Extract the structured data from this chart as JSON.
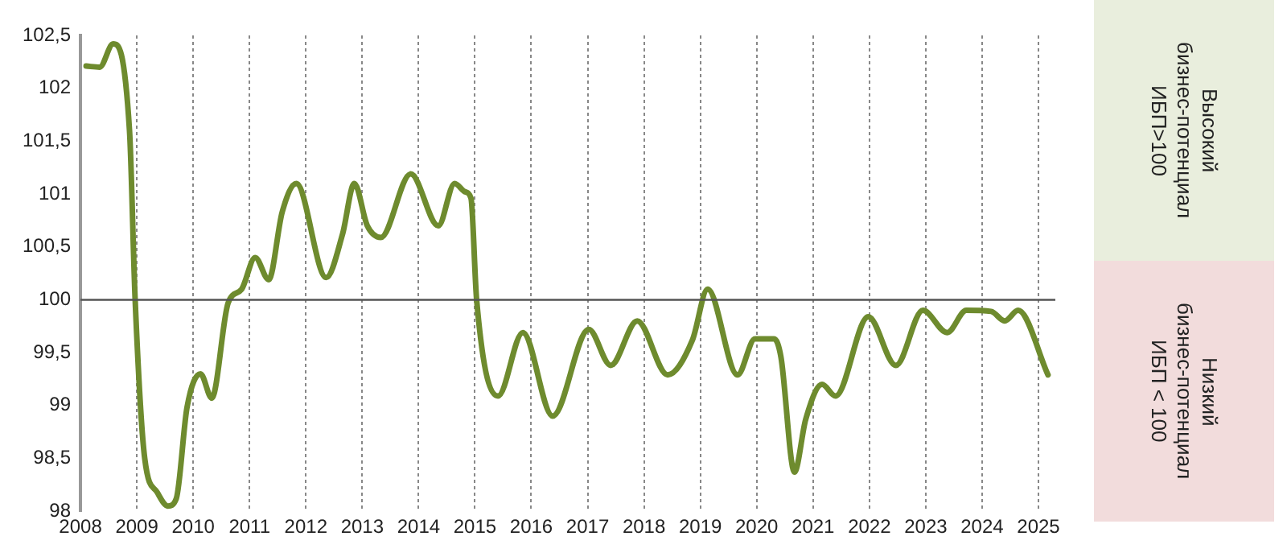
{
  "chart_data": {
    "type": "line",
    "x": [
      2008.1,
      2008.34,
      2008.58,
      2008.87,
      2008.97,
      2009.14,
      2009.36,
      2009.55,
      2009.7,
      2009.89,
      2010.13,
      2010.33,
      2010.62,
      2010.86,
      2011.1,
      2011.34,
      2011.58,
      2011.83,
      2012.36,
      2012.65,
      2012.86,
      2013.09,
      2013.33,
      2013.86,
      2014.35,
      2014.64,
      2014.83,
      2014.93,
      2015.03,
      2015.41,
      2015.85,
      2016.38,
      2017.02,
      2017.41,
      2017.88,
      2018.42,
      2018.86,
      2019.13,
      2019.66,
      2019.97,
      2020.31,
      2020.43,
      2020.67,
      2020.87,
      2021.16,
      2021.4,
      2021.98,
      2022.47,
      2022.95,
      2023.38,
      2023.72,
      2024.16,
      2024.4,
      2024.64,
      2025.17
    ],
    "series": [
      {
        "color": "#6e8b2e",
        "values": [
          102.21,
          102.2,
          102.42,
          101.6,
          100,
          98.5,
          98.18,
          98.05,
          98.12,
          98.98,
          99.3,
          99.07,
          99.97,
          100.1,
          100.4,
          100.19,
          100.83,
          101.1,
          100.21,
          100.62,
          101.1,
          100.7,
          100.59,
          101.19,
          100.7,
          101.1,
          101.02,
          100.96,
          100,
          99.09,
          99.69,
          98.9,
          99.72,
          99.38,
          99.8,
          99.29,
          99.62,
          100.1,
          99.29,
          99.63,
          99.63,
          99.46,
          98.37,
          98.87,
          99.2,
          99.09,
          99.84,
          99.38,
          99.9,
          99.69,
          99.9,
          99.89,
          99.8,
          99.9,
          99.29
        ]
      }
    ],
    "xlim": [
      2008,
      2025.3
    ],
    "xticks": [
      2008,
      2009,
      2010,
      2011,
      2012,
      2013,
      2014,
      2015,
      2016,
      2017,
      2018,
      2019,
      2020,
      2021,
      2022,
      2023,
      2024,
      2025
    ],
    "ylim": [
      98,
      102.5
    ],
    "yticks": [
      {
        "value": 98,
        "label": "98"
      },
      {
        "value": 98.5,
        "label": "98,5"
      },
      {
        "value": 99,
        "label": "99"
      },
      {
        "value": 99.5,
        "label": "99,5"
      },
      {
        "value": 100,
        "label": "100"
      },
      {
        "value": 100.5,
        "label": "100,5"
      },
      {
        "value": 101,
        "label": "101"
      },
      {
        "value": 101.5,
        "label": "101,5"
      },
      {
        "value": 102,
        "label": "102"
      },
      {
        "value": 102.5,
        "label": "102,5"
      }
    ],
    "grid": "x",
    "line_style": "solid",
    "ref_lines": [
      {
        "axis": "y",
        "value": 100,
        "color": "#555555"
      }
    ],
    "annotations": [
      "Высокий\nбизнес-потенциал\nИБП>100",
      "Низкий\nбизнес-потенциал\nИБП < 100"
    ],
    "legend": false
  }
}
